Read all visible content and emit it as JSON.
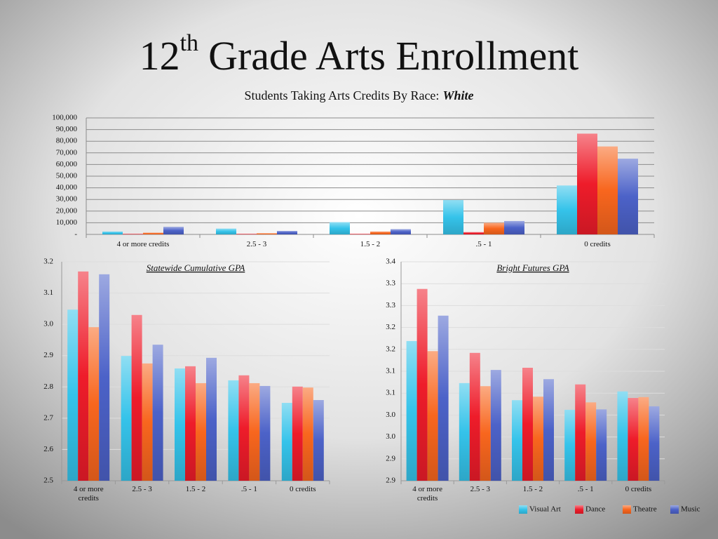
{
  "header": {
    "title_number": "12",
    "title_suffix": "th",
    "title_rest": "Grade Arts Enrollment",
    "subtitle": "Students Taking Arts Credits By Race:",
    "subtitle_emphasis": "White"
  },
  "chart_data": [
    {
      "type": "bar",
      "categories": [
        "4 or more credits",
        "2.5 - 3",
        "1.5 - 2",
        ".5 - 1",
        "0 credits"
      ],
      "ylim": [
        0,
        100000
      ],
      "yticks": [
        {
          "value": 0,
          "label": "-"
        },
        {
          "value": 10000,
          "label": "10,000"
        },
        {
          "value": 20000,
          "label": "20,000"
        },
        {
          "value": 30000,
          "label": "30,000"
        },
        {
          "value": 40000,
          "label": "40,000"
        },
        {
          "value": 50000,
          "label": "50,000"
        },
        {
          "value": 60000,
          "label": "60,000"
        },
        {
          "value": 70000,
          "label": "70,000"
        },
        {
          "value": 80000,
          "label": "80,000"
        },
        {
          "value": 90000,
          "label": "90,000"
        },
        {
          "value": 100000,
          "label": "100,000"
        }
      ],
      "grid": true,
      "series": [
        {
          "color": "#35c3ea",
          "values": [
            2500,
            5000,
            10500,
            29500,
            42000
          ]
        },
        {
          "color": "#ee1c2a",
          "values": [
            500,
            500,
            500,
            2000,
            86500
          ]
        },
        {
          "color": "#f8661e",
          "values": [
            1500,
            1000,
            2500,
            10000,
            75500
          ]
        },
        {
          "color": "#4c62c8",
          "values": [
            6500,
            3000,
            4500,
            11500,
            65000
          ]
        }
      ]
    },
    {
      "type": "bar",
      "title": "Statewide Cumulative GPA",
      "categories": [
        "4 or more credits",
        "2.5 - 3",
        "1.5 - 2",
        ".5 - 1",
        "0 credits"
      ],
      "ylim": [
        2.5,
        3.2
      ],
      "yticks": [
        2.5,
        2.6,
        2.7,
        2.8,
        2.9,
        {
          "value": 3,
          "label": "3.0"
        },
        3.1,
        3.2
      ],
      "grid": true,
      "series": [
        {
          "color": "#35c3ea",
          "values": [
            3.047,
            2.899,
            2.859,
            2.821,
            2.749
          ]
        },
        {
          "color": "#ee1c2a",
          "values": [
            3.169,
            3.03,
            2.866,
            2.837,
            2.801
          ]
        },
        {
          "color": "#f8661e",
          "values": [
            2.991,
            2.875,
            2.812,
            2.812,
            2.798
          ]
        },
        {
          "color": "#4c62c8",
          "values": [
            3.16,
            2.935,
            2.893,
            2.803,
            2.758
          ]
        }
      ]
    },
    {
      "type": "bar",
      "title": "Bright Futures GPA",
      "categories": [
        "4 or more credits",
        "2.5 - 3",
        "1.5 - 2",
        ".5 - 1",
        "0 credits"
      ],
      "ylim": [
        2.85,
        3.35
      ],
      "yticks": [
        {
          "value": 2.85,
          "label": "2.9"
        },
        {
          "value": 2.9,
          "label": "2.9"
        },
        {
          "value": 2.95,
          "label": "3.0"
        },
        {
          "value": 3,
          "label": "3.0"
        },
        {
          "value": 3.05,
          "label": "3.1"
        },
        {
          "value": 3.1,
          "label": "3.1"
        },
        {
          "value": 3.15,
          "label": "3.2"
        },
        {
          "value": 3.2,
          "label": "3.2"
        },
        {
          "value": 3.25,
          "label": "3.3"
        },
        {
          "value": 3.3,
          "label": "3.3"
        },
        {
          "value": 3.35,
          "label": "3.4"
        }
      ],
      "grid": true,
      "legend": "bottom-right",
      "series": [
        {
          "name": "Visual Art",
          "color": "#35c3ea",
          "values": [
            3.169,
            3.073,
            3.034,
            3.012,
            3.054
          ]
        },
        {
          "name": "Dance",
          "color": "#ee1c2a",
          "values": [
            3.288,
            3.142,
            3.108,
            3.07,
            3.039
          ]
        },
        {
          "name": "Theatre",
          "color": "#f8661e",
          "values": [
            3.146,
            3.066,
            3.042,
            3.029,
            3.041
          ]
        },
        {
          "name": "Music",
          "color": "#4c62c8",
          "values": [
            3.227,
            3.103,
            3.082,
            3.013,
            3.02
          ]
        }
      ]
    }
  ]
}
